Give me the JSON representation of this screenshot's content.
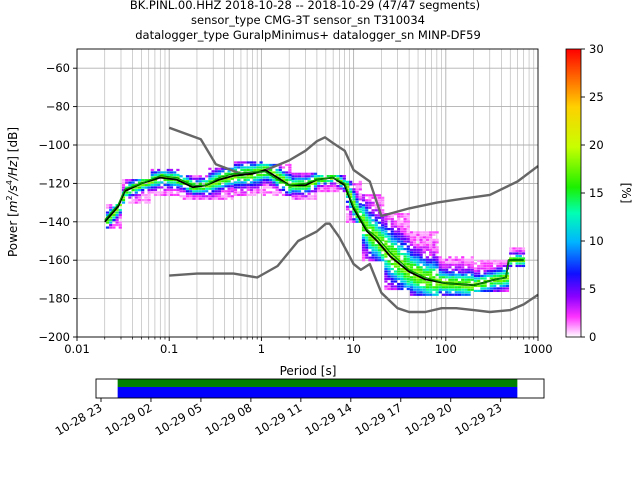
{
  "chart_data": {
    "type": "heatmap",
    "title_lines": [
      "BK.PINL.00.HHZ   2018-10-28 -- 2018-10-29  (47/47 segments)",
      "sensor_type CMG-3T sensor_sn T310034",
      "datalogger_type GuralpMinimus+ datalogger_sn MINP-DF59"
    ],
    "xlabel": "Period [s]",
    "ylabel_parts": [
      "Power [",
      "m",
      "2",
      "/s",
      "4",
      "/Hz",
      "] [dB]"
    ],
    "x_scale": "log",
    "xlim": [
      0.01,
      1000
    ],
    "ylim": [
      -200,
      -50
    ],
    "x_ticks": [
      0.01,
      0.1,
      1,
      10,
      100,
      1000
    ],
    "x_tick_labels": [
      "0.01",
      "0.1",
      "1",
      "10",
      "100",
      "1000"
    ],
    "y_ticks": [
      -200,
      -180,
      -160,
      -140,
      -120,
      -100,
      -80,
      -60
    ],
    "y_tick_labels": [
      "−200",
      "−180",
      "−160",
      "−140",
      "−120",
      "−100",
      "−80",
      "−60"
    ],
    "grid": true,
    "colorbar": {
      "label": "[%]",
      "range": [
        0,
        30
      ],
      "ticks": [
        0,
        5,
        10,
        15,
        20,
        25,
        30
      ],
      "tick_labels": [
        "0",
        "5",
        "10",
        "15",
        "20",
        "25",
        "30"
      ]
    },
    "series": [
      {
        "role": "noise-model-upper",
        "color": "#666666",
        "points": [
          [
            0.1,
            -91
          ],
          [
            0.22,
            -97
          ],
          [
            0.32,
            -110
          ],
          [
            0.6,
            -115
          ],
          [
            1.0,
            -114
          ],
          [
            2.0,
            -108
          ],
          [
            3.0,
            -103
          ],
          [
            4.0,
            -98
          ],
          [
            4.9,
            -96
          ],
          [
            6.0,
            -99
          ],
          [
            8.0,
            -103
          ],
          [
            10,
            -113
          ],
          [
            15,
            -119
          ],
          [
            20,
            -137
          ],
          [
            40,
            -133
          ],
          [
            80,
            -130
          ],
          [
            150,
            -128
          ],
          [
            300,
            -126
          ],
          [
            600,
            -119
          ],
          [
            1000,
            -111
          ]
        ]
      },
      {
        "role": "noise-model-lower",
        "color": "#666666",
        "points": [
          [
            0.1,
            -168
          ],
          [
            0.2,
            -167
          ],
          [
            0.5,
            -167
          ],
          [
            0.9,
            -169
          ],
          [
            1.5,
            -163
          ],
          [
            2.5,
            -150
          ],
          [
            4.0,
            -145
          ],
          [
            5.0,
            -141
          ],
          [
            5.5,
            -141
          ],
          [
            7.0,
            -148
          ],
          [
            10,
            -162
          ],
          [
            12,
            -165
          ],
          [
            15,
            -162
          ],
          [
            20,
            -177
          ],
          [
            30,
            -185
          ],
          [
            40,
            -187
          ],
          [
            60,
            -187
          ],
          [
            90,
            -185
          ],
          [
            130,
            -185
          ],
          [
            200,
            -186
          ],
          [
            300,
            -187
          ],
          [
            500,
            -186
          ],
          [
            700,
            -183
          ],
          [
            1000,
            -178
          ]
        ]
      },
      {
        "role": "mean",
        "color": "#000000",
        "points": [
          [
            0.02,
            -140
          ],
          [
            0.028,
            -132
          ],
          [
            0.033,
            -124
          ],
          [
            0.05,
            -120
          ],
          [
            0.08,
            -117
          ],
          [
            0.12,
            -118
          ],
          [
            0.18,
            -122
          ],
          [
            0.25,
            -121
          ],
          [
            0.35,
            -118
          ],
          [
            0.5,
            -116
          ],
          [
            0.8,
            -115
          ],
          [
            1.1,
            -113
          ],
          [
            1.5,
            -117
          ],
          [
            2.0,
            -121
          ],
          [
            3.0,
            -121
          ],
          [
            4.0,
            -118
          ],
          [
            6.0,
            -117
          ],
          [
            8.0,
            -121
          ],
          [
            10,
            -133
          ],
          [
            14,
            -145
          ],
          [
            18,
            -150
          ],
          [
            25,
            -158
          ],
          [
            40,
            -166
          ],
          [
            60,
            -170
          ],
          [
            100,
            -172
          ],
          [
            200,
            -173
          ],
          [
            350,
            -170
          ],
          [
            450,
            -169
          ],
          [
            480,
            -160
          ],
          [
            700,
            -160
          ]
        ]
      },
      {
        "role": "mode",
        "color": "#009900",
        "points": [
          [
            0.02,
            -139
          ],
          [
            0.028,
            -131
          ],
          [
            0.033,
            -123
          ],
          [
            0.05,
            -120
          ],
          [
            0.08,
            -116
          ],
          [
            0.12,
            -117
          ],
          [
            0.18,
            -121
          ],
          [
            0.25,
            -121
          ],
          [
            0.35,
            -117
          ],
          [
            0.5,
            -115
          ],
          [
            0.8,
            -114
          ],
          [
            1.1,
            -114
          ],
          [
            1.5,
            -118
          ],
          [
            2.0,
            -121
          ],
          [
            3.0,
            -120
          ],
          [
            4.0,
            -118
          ],
          [
            6.0,
            -117
          ],
          [
            8.0,
            -120
          ],
          [
            10,
            -132
          ],
          [
            14,
            -144
          ],
          [
            18,
            -148
          ],
          [
            25,
            -156
          ],
          [
            40,
            -165
          ],
          [
            60,
            -169
          ],
          [
            100,
            -172
          ],
          [
            200,
            -173
          ],
          [
            350,
            -170
          ],
          [
            450,
            -169
          ],
          [
            480,
            -160
          ],
          [
            700,
            -160
          ]
        ]
      }
    ],
    "density_bands": [
      {
        "x0": 0.019,
        "x1": 0.03,
        "lo": -143,
        "hi": -130
      },
      {
        "x0": 0.03,
        "x1": 0.06,
        "lo": -130,
        "hi": -118
      },
      {
        "x0": 0.06,
        "x1": 0.12,
        "lo": -126,
        "hi": -113
      },
      {
        "x0": 0.12,
        "x1": 0.25,
        "lo": -128,
        "hi": -116
      },
      {
        "x0": 0.25,
        "x1": 0.5,
        "lo": -128,
        "hi": -112
      },
      {
        "x0": 0.5,
        "x1": 1.0,
        "lo": -126,
        "hi": -108
      },
      {
        "x0": 1.0,
        "x1": 2.0,
        "lo": -126,
        "hi": -110
      },
      {
        "x0": 2.0,
        "x1": 4.0,
        "lo": -128,
        "hi": -115
      },
      {
        "x0": 4.0,
        "x1": 8.0,
        "lo": -124,
        "hi": -115
      },
      {
        "x0": 8.0,
        "x1": 12,
        "lo": -140,
        "hi": -118
      },
      {
        "x0": 12,
        "x1": 20,
        "lo": -160,
        "hi": -125
      },
      {
        "x0": 20,
        "x1": 40,
        "lo": -175,
        "hi": -135
      },
      {
        "x0": 40,
        "x1": 80,
        "lo": -178,
        "hi": -145
      },
      {
        "x0": 80,
        "x1": 200,
        "lo": -178,
        "hi": -158
      },
      {
        "x0": 200,
        "x1": 450,
        "lo": -176,
        "hi": -160
      },
      {
        "x0": 450,
        "x1": 700,
        "lo": -163,
        "hi": -153
      }
    ],
    "timeline": {
      "tick_labels": [
        "10-28 23",
        "10-29 02",
        "10-29 05",
        "10-29 08",
        "10-29 11",
        "10-29 14",
        "10-29 17",
        "10-29 20",
        "10-29 23"
      ],
      "hours_from_first_tick": [
        0,
        3,
        6,
        9,
        12,
        15,
        18,
        21,
        24
      ],
      "range_hours": [
        -0.3,
        26.6
      ],
      "coverage_hours": [
        1.0,
        25.0
      ],
      "bar_colors": [
        "#008000",
        "#0000ff"
      ]
    }
  }
}
